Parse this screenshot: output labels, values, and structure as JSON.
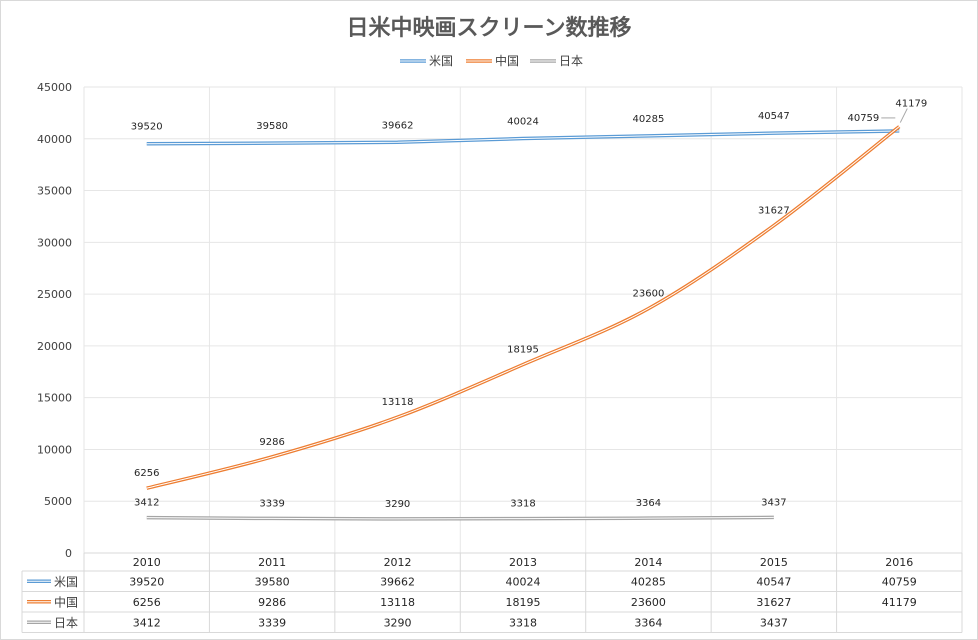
{
  "chart_data": {
    "type": "line",
    "title": "日米中映画スクリーン数推移",
    "categories": [
      "2010",
      "2011",
      "2012",
      "2013",
      "2014",
      "2015",
      "2016"
    ],
    "series": [
      {
        "name": "米国",
        "color": "#5b9bd5",
        "values": [
          39520,
          39580,
          39662,
          40024,
          40285,
          40547,
          40759
        ]
      },
      {
        "name": "中国",
        "color": "#ed7d31",
        "values": [
          6256,
          9286,
          13118,
          18195,
          23600,
          31627,
          41179
        ]
      },
      {
        "name": "日本",
        "color": "#a5a5a5",
        "values": [
          3412,
          3339,
          3290,
          3318,
          3364,
          3437,
          null
        ]
      }
    ],
    "ylim": [
      0,
      45000
    ],
    "yticks": [
      "0",
      "5000",
      "10000",
      "15000",
      "20000",
      "25000",
      "30000",
      "35000",
      "40000",
      "45000"
    ],
    "legend_position": "top",
    "grid": true,
    "data_table": true
  }
}
